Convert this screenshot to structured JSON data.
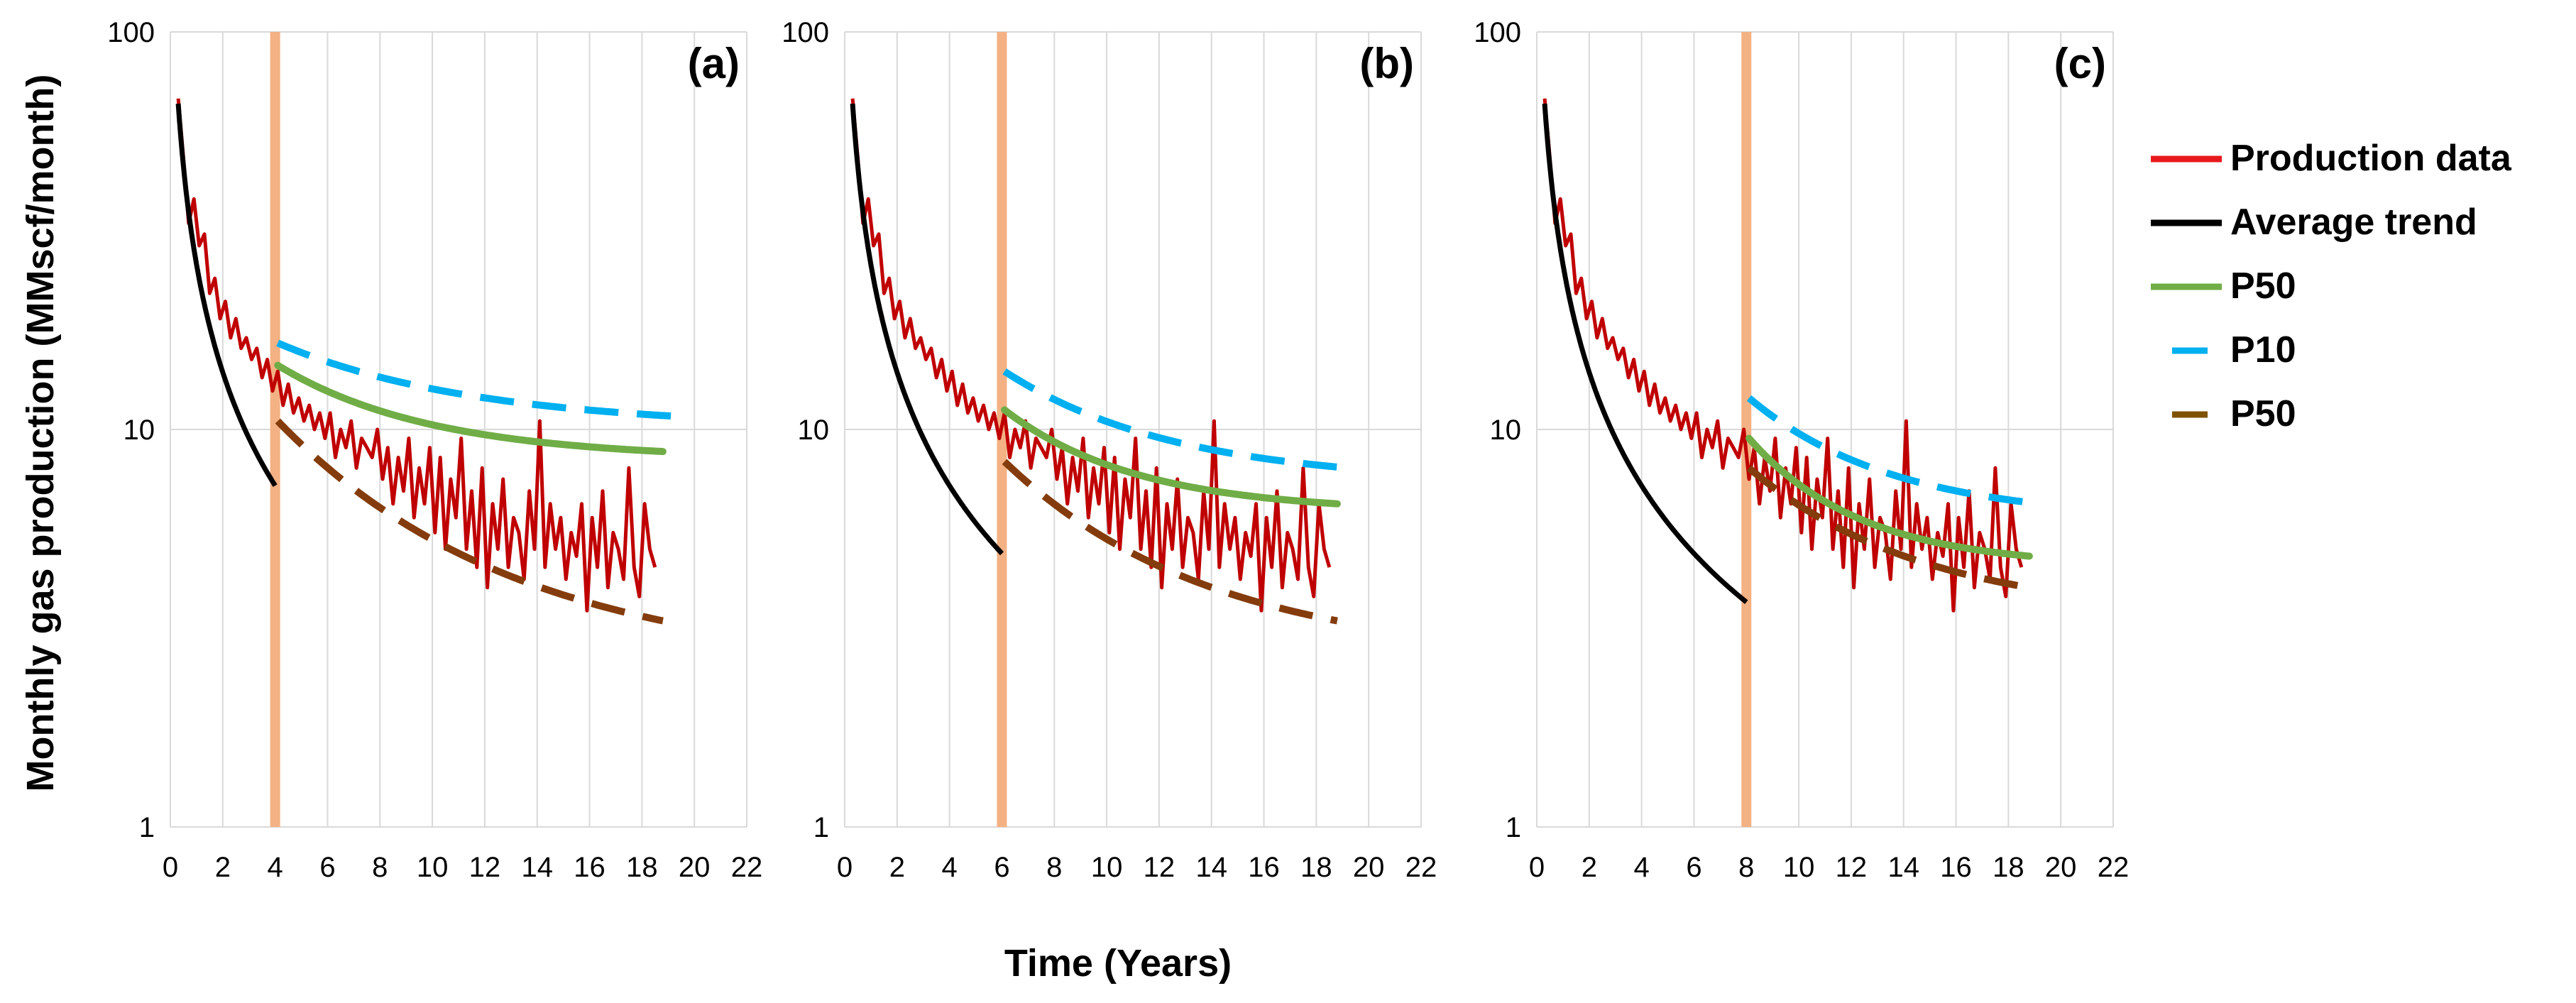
{
  "chart_data": {
    "type": "line",
    "shared": {
      "ylabel": "Monthly gas production (MMscf/month)",
      "xlabel": "Time (Years)",
      "yscale": "log",
      "ylim": [
        1,
        100
      ],
      "y_ticks": [
        1,
        10,
        100
      ],
      "y_tick_labels": [
        "1",
        "10",
        "100"
      ],
      "xlim": [
        0,
        22
      ],
      "x_ticks": [
        0,
        2,
        4,
        6,
        8,
        10,
        12,
        14,
        16,
        18,
        20,
        22
      ],
      "x_tick_labels": [
        "0",
        "2",
        "4",
        "6",
        "8",
        "10",
        "12",
        "14",
        "16",
        "18",
        "20",
        "22"
      ],
      "grid": true
    },
    "legend": {
      "placement": "right",
      "entries": [
        {
          "label": "Production data",
          "color": "#e8191c",
          "style": "solid"
        },
        {
          "label": "Average trend",
          "color": "#000000",
          "style": "solid"
        },
        {
          "label": "P50",
          "color": "#70ad47",
          "style": "solid"
        },
        {
          "label": "P10",
          "color": "#00b0f0",
          "style": "dashed"
        },
        {
          "label": "P50",
          "color": "#7f5200",
          "style": "dashed"
        }
      ]
    },
    "colors": {
      "production": "#c00000",
      "average": "#000000",
      "p50_solid": "#70ad47",
      "p10": "#00b0f0",
      "p50_dashed": "#843c0c",
      "cutoff_line": "#f4b183",
      "grid": "#d9d9d9"
    },
    "production_data": {
      "t": [
        0.3,
        0.5,
        0.7,
        0.9,
        1.1,
        1.3,
        1.5,
        1.7,
        1.9,
        2.1,
        2.3,
        2.5,
        2.7,
        2.9,
        3.1,
        3.3,
        3.5,
        3.7,
        3.9,
        4.1,
        4.3,
        4.5,
        4.7,
        4.9,
        5.1,
        5.3,
        5.5,
        5.7,
        5.9,
        6.1,
        6.3,
        6.5,
        6.7,
        6.9,
        7.1,
        7.3,
        7.5,
        7.7,
        7.9,
        8.1,
        8.3,
        8.5,
        8.7,
        8.9,
        9.1,
        9.3,
        9.5,
        9.7,
        9.9,
        10.1,
        10.3,
        10.5,
        10.7,
        10.9,
        11.1,
        11.3,
        11.5,
        11.7,
        11.9,
        12.1,
        12.3,
        12.5,
        12.7,
        12.9,
        13.1,
        13.3,
        13.5,
        13.7,
        13.9,
        14.1,
        14.3,
        14.5,
        14.7,
        14.9,
        15.1,
        15.3,
        15.5,
        15.7,
        15.9,
        16.1,
        16.3,
        16.5,
        16.7,
        16.9,
        17.1,
        17.3,
        17.5,
        17.7,
        17.9,
        18.1,
        18.3,
        18.5
      ],
      "q": [
        68,
        48,
        33,
        38,
        29,
        31,
        22,
        24,
        19,
        21,
        17,
        19,
        16,
        17,
        15,
        16,
        13.5,
        15,
        12.5,
        14,
        11.5,
        13,
        11,
        12,
        10.5,
        11.5,
        10,
        11,
        9.5,
        11,
        8.5,
        10,
        9,
        10.5,
        8,
        9.5,
        9,
        8.5,
        10,
        7.5,
        9,
        6.5,
        8.5,
        7,
        9.5,
        6,
        8,
        6.5,
        9,
        5.5,
        8.5,
        5,
        7.5,
        6,
        9.5,
        5,
        7,
        4.5,
        8,
        4,
        6.5,
        5,
        7.5,
        4.5,
        6,
        5.5,
        4.2,
        7,
        5,
        10.5,
        4.5,
        6.5,
        5,
        6,
        4.2,
        5.5,
        4.8,
        6.5,
        3.5,
        6,
        4.5,
        7,
        4,
        5.5,
        5,
        4.2,
        8,
        4.5,
        3.8,
        6.5,
        5,
        4.5
      ]
    },
    "panels": [
      {
        "label": "(a)",
        "cutoff_year": 4,
        "avg_end_year": 4.0,
        "p10_start": 16.5,
        "p10_end": 10.8,
        "p50_start": 14.5,
        "p50_end": 8.8,
        "p50d_start": 10.5,
        "p50d_end": 3.3
      },
      {
        "label": "(b)",
        "cutoff_year": 6,
        "avg_end_year": 6.0,
        "p10_start": 14.0,
        "p10_end": 8.0,
        "p50_start": 11.2,
        "p50_end": 6.5,
        "p50d_start": 8.3,
        "p50d_end": 3.3
      },
      {
        "label": "(c)",
        "cutoff_year": 8,
        "avg_end_year": 8.0,
        "p10_start": 12.0,
        "p10_end": 6.5,
        "p50_start": 9.5,
        "p50_end": 4.8,
        "p50d_start": 8.0,
        "p50d_end": 4.0
      }
    ]
  }
}
